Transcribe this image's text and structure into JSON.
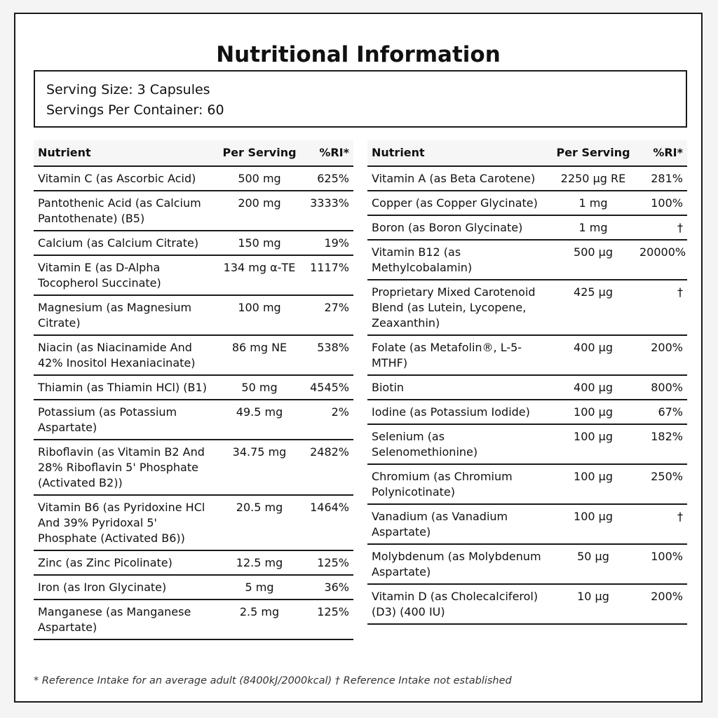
{
  "title": "Nutritional Information",
  "serving": {
    "size": "Serving Size: 3 Capsules",
    "per_container": "Servings Per Container: 60"
  },
  "headers": {
    "nutrient": "Nutrient",
    "per_serving": "Per Serving",
    "ri": "%RI*"
  },
  "left_rows": [
    {
      "nutrient": "Vitamin C (as Ascorbic Acid)",
      "amount": "500 mg",
      "ri": "625%"
    },
    {
      "nutrient": "Pantothenic Acid (as Calcium Pantothenate) (B5)",
      "amount": "200 mg",
      "ri": "3333%"
    },
    {
      "nutrient": "Calcium (as Calcium Citrate)",
      "amount": "150 mg",
      "ri": "19%"
    },
    {
      "nutrient": "Vitamin E (as D-Alpha Tocopherol Succinate)",
      "amount": "134 mg α-TE",
      "ri": "1117%"
    },
    {
      "nutrient": "Magnesium (as Magnesium Citrate)",
      "amount": "100 mg",
      "ri": "27%"
    },
    {
      "nutrient": "Niacin (as Niacinamide And 42% Inositol Hexaniacinate)",
      "amount": "86 mg NE",
      "ri": "538%"
    },
    {
      "nutrient": "Thiamin (as Thiamin HCl) (B1)",
      "amount": "50 mg",
      "ri": "4545%"
    },
    {
      "nutrient": "Potassium (as Potassium Aspartate)",
      "amount": "49.5 mg",
      "ri": "2%"
    },
    {
      "nutrient": "Riboflavin (as Vitamin B2 And 28% Riboflavin 5' Phosphate (Activated B2))",
      "amount": "34.75 mg",
      "ri": "2482%"
    },
    {
      "nutrient": "Vitamin B6 (as Pyridoxine HCl And 39% Pyridoxal 5' Phosphate (Activated B6))",
      "amount": "20.5 mg",
      "ri": "1464%"
    },
    {
      "nutrient": "Zinc (as Zinc Picolinate)",
      "amount": "12.5 mg",
      "ri": "125%"
    },
    {
      "nutrient": "Iron (as Iron Glycinate)",
      "amount": "5 mg",
      "ri": "36%"
    },
    {
      "nutrient": "Manganese (as Manganese Aspartate)",
      "amount": "2.5 mg",
      "ri": "125%"
    }
  ],
  "right_rows": [
    {
      "nutrient": "Vitamin A (as Beta Carotene)",
      "amount": "2250 μg RE",
      "ri": "281%"
    },
    {
      "nutrient": "Copper (as Copper Glycinate)",
      "amount": "1 mg",
      "ri": "100%"
    },
    {
      "nutrient": "Boron (as Boron Glycinate)",
      "amount": "1 mg",
      "ri": "†"
    },
    {
      "nutrient": "Vitamin B12 (as Methylcobalamin)",
      "amount": "500 μg",
      "ri": "20000%"
    },
    {
      "nutrient": "Proprietary Mixed Carotenoid Blend (as Lutein, Lycopene, Zeaxanthin)",
      "amount": "425 μg",
      "ri": "†"
    },
    {
      "nutrient": "Folate (as Metafolin®, L-5-MTHF)",
      "amount": "400 μg",
      "ri": "200%"
    },
    {
      "nutrient": "Biotin",
      "amount": "400 μg",
      "ri": "800%"
    },
    {
      "nutrient": "Iodine (as Potassium Iodide)",
      "amount": "100 μg",
      "ri": "67%"
    },
    {
      "nutrient": "Selenium (as Selenomethionine)",
      "amount": "100 μg",
      "ri": "182%"
    },
    {
      "nutrient": "Chromium (as Chromium Polynicotinate)",
      "amount": "100 μg",
      "ri": "250%"
    },
    {
      "nutrient": "Vanadium (as Vanadium Aspartate)",
      "amount": "100 μg",
      "ri": "†"
    },
    {
      "nutrient": "Molybdenum (as Molybdenum Aspartate)",
      "amount": "50 μg",
      "ri": "100%"
    },
    {
      "nutrient": "Vitamin D (as Cholecalciferol) (D3) (400 IU)",
      "amount": "10 μg",
      "ri": "200%"
    }
  ],
  "footnote": "* Reference Intake for an average adult (8400kJ/2000kcal) † Reference Intake not established"
}
